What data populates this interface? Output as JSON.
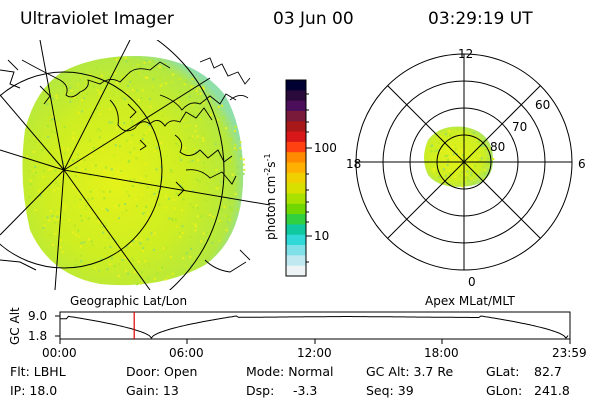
{
  "header": {
    "instrument": "Ultraviolet Imager",
    "date": "03 Jun 00",
    "time": "03:29:19 UT"
  },
  "colorbar": {
    "unit_label": "photon cm⁻²s⁻¹",
    "unit_base": "photon cm",
    "unit_exp1": "-2",
    "unit_mid": "s",
    "unit_exp2": "-1",
    "ticks": [
      "100",
      "10"
    ],
    "colors": [
      "#000033",
      "#2a0a3a",
      "#4b0e5a",
      "#7a1a3a",
      "#a81818",
      "#d81818",
      "#ff4010",
      "#ff8a00",
      "#ffb000",
      "#f0d000",
      "#d8e000",
      "#a8e000",
      "#70d800",
      "#30d040",
      "#10c8a0",
      "#30d8d8",
      "#80e0e8",
      "#c0e8f0",
      "#eef4f6"
    ]
  },
  "left_panel": {
    "caption": "Geographic Lat/Lon",
    "image_colors": {
      "base": "#c8ee20",
      "mid": "#dcf018",
      "edge": "#9be0a0",
      "spot": "#30c8c8"
    }
  },
  "polar_panel": {
    "caption": "Apex MLat/MLT",
    "mlt_labels": {
      "top": "12",
      "left": "18",
      "right": "6",
      "bottom": "0"
    },
    "lat_labels": [
      "60",
      "70",
      "80"
    ]
  },
  "altitude_plot": {
    "ylabel": "GC Alt",
    "yticks": [
      "9.0",
      "1.8"
    ],
    "xticks": [
      "00:00",
      "06:00",
      "12:00",
      "18:00",
      "23:59"
    ],
    "marker_color": "#dd0000",
    "marker_time_hours": 3.49
  },
  "info": {
    "flt": "Flt: LBHL",
    "ip": "IP: 18.0",
    "door": "Door: Open",
    "gain": "Gain: 13",
    "mode": "Mode: Normal",
    "dsp": "Dsp:",
    "dsp_val": "-3.3",
    "gcalt": "GC Alt: 3.7 Re",
    "seq": "Seq: 39",
    "glat": "GLat:",
    "glat_val": "82.7",
    "glon": "GLon:",
    "glon_val": "241.8"
  }
}
